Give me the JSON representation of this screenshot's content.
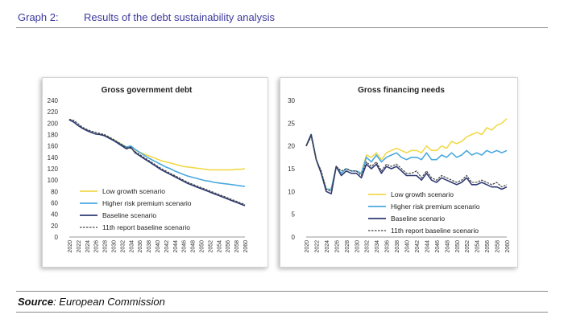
{
  "header": {
    "number": "Graph 2:",
    "title": "Results of the debt sustainability analysis"
  },
  "footer": {
    "source_label": "Source",
    "source_text": ": European Commission"
  },
  "legend_labels": [
    "Low growth scenario",
    "Higher risk premium scenario",
    "Baseline scenario",
    "11th report baseline scenario"
  ],
  "colors": {
    "low_growth": "#f2d84a",
    "higher_risk": "#49a8de",
    "baseline": "#2e3a73",
    "eleventh": "#444444"
  },
  "chart_data": [
    {
      "type": "line",
      "title": "Gross government debt",
      "x": [
        2020,
        2021,
        2022,
        2023,
        2024,
        2025,
        2026,
        2027,
        2028,
        2029,
        2030,
        2031,
        2032,
        2033,
        2034,
        2035,
        2036,
        2037,
        2038,
        2039,
        2040,
        2041,
        2042,
        2043,
        2044,
        2045,
        2046,
        2047,
        2048,
        2049,
        2050,
        2051,
        2052,
        2053,
        2054,
        2055,
        2056,
        2057,
        2058,
        2059,
        2060
      ],
      "x_tick_labels": [
        "2020",
        "2022",
        "2024",
        "2026",
        "2028",
        "2030",
        "2032",
        "2034",
        "2036",
        "2038",
        "2040",
        "2042",
        "2044",
        "2046",
        "2048",
        "2050",
        "2052",
        "2054",
        "2056",
        "2058",
        "2060"
      ],
      "y_ticks": [
        0,
        20,
        40,
        60,
        80,
        100,
        120,
        140,
        160,
        180,
        200,
        220,
        240
      ],
      "ylim": [
        0,
        240
      ],
      "legend_position": "bottom-left",
      "series": [
        {
          "name": "Low growth scenario",
          "color": "#f2d84a",
          "dash": false,
          "values": [
            206,
            202,
            196,
            191,
            187,
            184,
            181,
            180,
            179,
            175,
            171,
            167,
            163,
            158,
            159,
            153,
            149,
            146,
            143,
            140,
            137,
            134,
            132,
            130,
            128,
            126,
            124,
            123,
            122,
            121,
            120,
            119,
            118,
            118,
            118,
            118,
            118,
            118,
            119,
            119,
            120
          ]
        },
        {
          "name": "Higher risk premium scenario",
          "color": "#49a8de",
          "dash": false,
          "values": [
            206,
            202,
            196,
            191,
            187,
            184,
            181,
            180,
            178,
            174,
            170,
            166,
            162,
            158,
            160,
            154,
            149,
            144,
            139,
            135,
            131,
            127,
            123,
            120,
            116,
            113,
            110,
            107,
            105,
            103,
            101,
            99,
            98,
            96,
            95,
            94,
            93,
            92,
            91,
            90,
            89
          ]
        },
        {
          "name": "Baseline scenario",
          "color": "#2e3a73",
          "dash": false,
          "values": [
            206,
            202,
            196,
            191,
            187,
            184,
            181,
            180,
            178,
            174,
            170,
            165,
            160,
            155,
            158,
            148,
            143,
            138,
            133,
            128,
            123,
            118,
            114,
            110,
            106,
            102,
            98,
            94,
            91,
            88,
            85,
            82,
            79,
            76,
            73,
            70,
            67,
            64,
            61,
            58,
            55
          ]
        },
        {
          "name": "11th report baseline scenario",
          "color": "#444444",
          "dash": true,
          "values": [
            207,
            205,
            199,
            193,
            189,
            186,
            184,
            182,
            180,
            176,
            172,
            167,
            162,
            157,
            156,
            150,
            145,
            140,
            135,
            130,
            125,
            120,
            116,
            112,
            108,
            104,
            100,
            96,
            93,
            90,
            87,
            84,
            81,
            78,
            75,
            72,
            69,
            66,
            63,
            60,
            57
          ]
        }
      ]
    },
    {
      "type": "line",
      "title": "Gross financing needs",
      "x": [
        2020,
        2021,
        2022,
        2023,
        2024,
        2025,
        2026,
        2027,
        2028,
        2029,
        2030,
        2031,
        2032,
        2033,
        2034,
        2035,
        2036,
        2037,
        2038,
        2039,
        2040,
        2041,
        2042,
        2043,
        2044,
        2045,
        2046,
        2047,
        2048,
        2049,
        2050,
        2051,
        2052,
        2053,
        2054,
        2055,
        2056,
        2057,
        2058,
        2059,
        2060
      ],
      "x_tick_labels": [
        "2020",
        "2022",
        "2024",
        "2026",
        "2028",
        "2030",
        "2032",
        "2034",
        "2036",
        "2038",
        "2040",
        "2042",
        "2044",
        "2046",
        "2048",
        "2050",
        "2052",
        "2054",
        "2056",
        "2058",
        "2060"
      ],
      "y_ticks": [
        0,
        5,
        10,
        15,
        20,
        25,
        30
      ],
      "ylim": [
        0,
        30
      ],
      "legend_position": "bottom-right",
      "series": [
        {
          "name": "Low growth scenario",
          "color": "#f2d84a",
          "dash": false,
          "values": [
            20,
            22.5,
            17,
            14,
            10.5,
            10.5,
            15.5,
            14,
            15,
            14.5,
            14.5,
            14,
            18,
            17.5,
            18.5,
            17,
            18.5,
            19,
            19.5,
            19,
            18.5,
            19,
            19,
            18.5,
            20,
            19,
            19,
            20,
            19.5,
            21,
            20.5,
            21,
            22,
            22.5,
            23,
            22.5,
            24,
            23.5,
            24.5,
            25,
            26
          ]
        },
        {
          "name": "Higher risk premium scenario",
          "color": "#49a8de",
          "dash": false,
          "values": [
            20,
            22.5,
            17,
            14,
            10.5,
            10.5,
            15.5,
            14,
            15,
            14.5,
            14.5,
            14,
            17.5,
            16.5,
            18,
            16.5,
            17.5,
            18,
            18.5,
            17.5,
            17,
            17.5,
            17.5,
            17,
            18.5,
            17,
            17,
            18,
            17.5,
            18.5,
            17.5,
            18,
            19,
            18,
            18.5,
            18,
            19,
            18.5,
            19,
            18.5,
            19
          ]
        },
        {
          "name": "Baseline scenario",
          "color": "#2e3a73",
          "dash": false,
          "values": [
            20,
            22.5,
            17,
            14,
            10,
            9.5,
            15.5,
            13.5,
            14.5,
            14,
            14,
            13,
            16,
            15,
            16,
            14,
            15.5,
            15,
            15.5,
            14.5,
            13.5,
            13.5,
            13.5,
            12.5,
            14,
            12.5,
            12,
            13,
            12.5,
            12,
            11.5,
            12,
            13,
            11.5,
            11.5,
            12,
            11.5,
            11,
            11,
            10.5,
            11
          ]
        },
        {
          "name": "11th report baseline scenario",
          "color": "#444444",
          "dash": true,
          "values": [
            20,
            22,
            17,
            14.5,
            10.5,
            10,
            15.5,
            14.5,
            15,
            14.5,
            14.5,
            13.5,
            16.5,
            15.5,
            16.5,
            14.5,
            16,
            15.5,
            16,
            15,
            14,
            14,
            14.5,
            13,
            14.5,
            13,
            12.5,
            13.5,
            13,
            12.5,
            12,
            12.5,
            13.5,
            12,
            12,
            12.5,
            12,
            11.5,
            12,
            11,
            11.5
          ]
        }
      ]
    }
  ]
}
